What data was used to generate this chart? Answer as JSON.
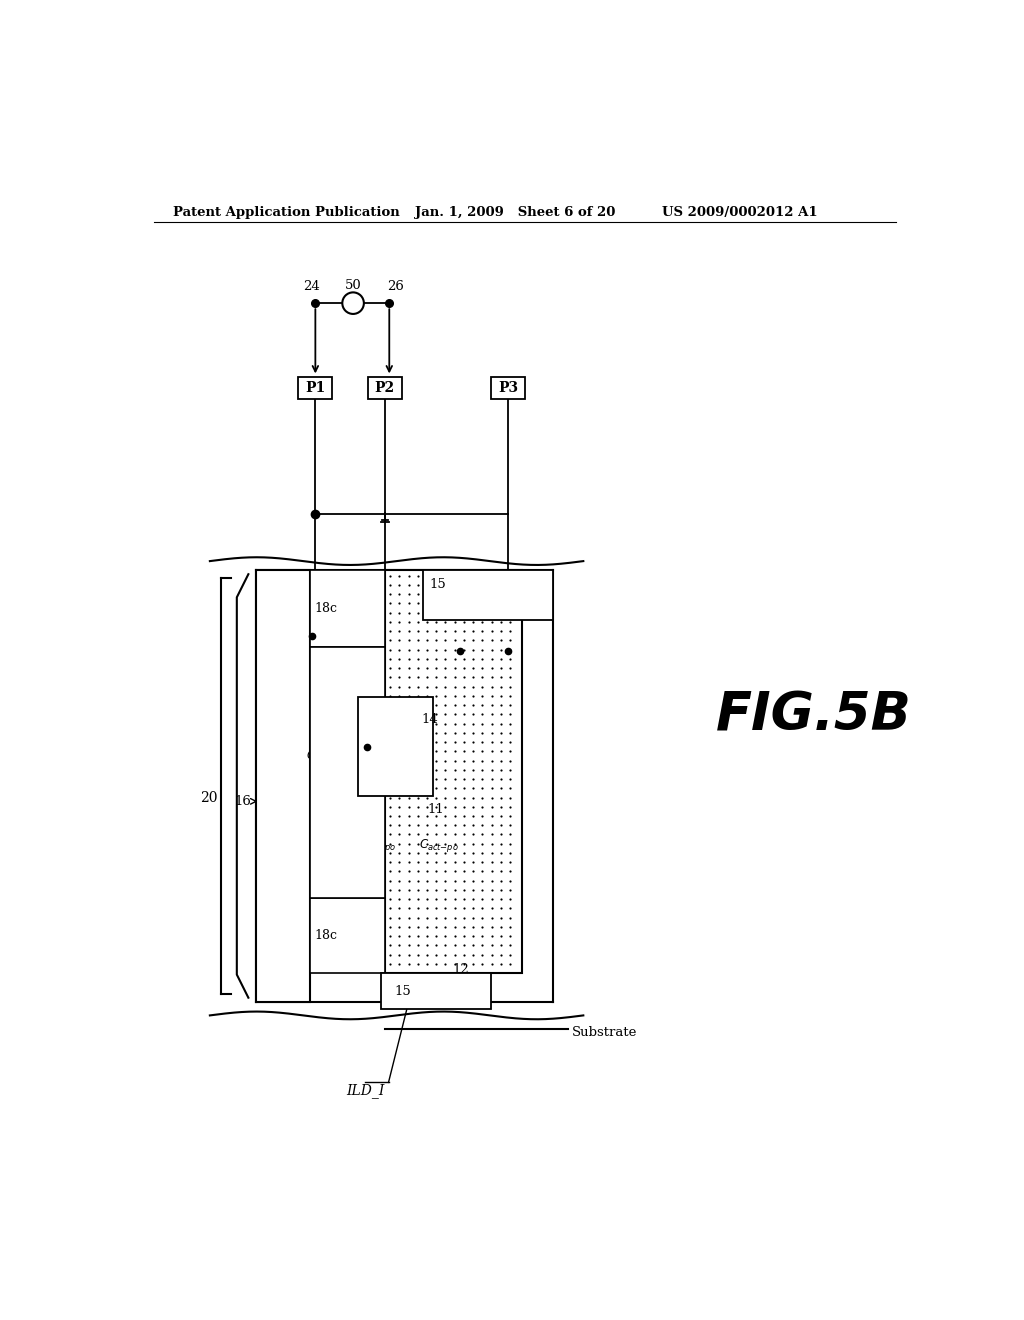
{
  "bg_color": "#ffffff",
  "header_left": "Patent Application Publication",
  "header_mid": "Jan. 1, 2009   Sheet 6 of 20",
  "header_right": "US 2009/0002012 A1",
  "fig_label": "FIG.5B"
}
